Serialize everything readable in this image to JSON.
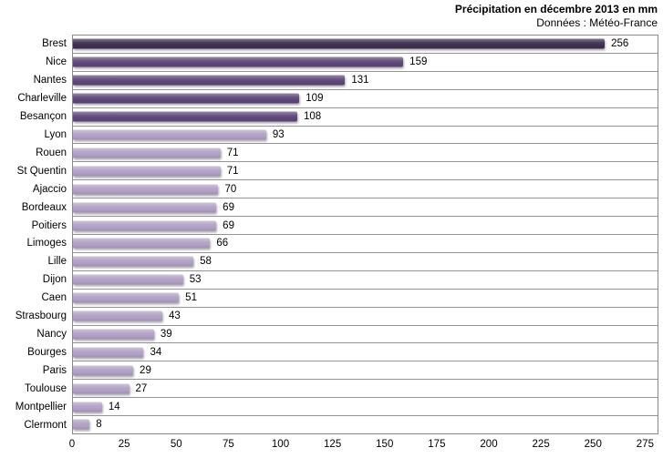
{
  "chart": {
    "title": "Précipitation en décembre 2013 en mm",
    "subtitle": "Données : Météo-France"
  },
  "chart_data": {
    "type": "bar",
    "orientation": "horizontal",
    "title": "Précipitation en décembre 2013 en mm",
    "subtitle": "Données : Météo-France",
    "xlabel": "",
    "ylabel": "",
    "categories": [
      "Brest",
      "Nice",
      "Nantes",
      "Charleville",
      "Besançon",
      "Lyon",
      "Rouen",
      "St Quentin",
      "Ajaccio",
      "Bordeaux",
      "Poitiers",
      "Limoges",
      "Lille",
      "Dijon",
      "Caen",
      "Strasbourg",
      "Nancy",
      "Bourges",
      "Paris",
      "Toulouse",
      "Montpellier",
      "Clermont"
    ],
    "values": [
      256,
      159,
      131,
      109,
      108,
      93,
      71,
      71,
      70,
      69,
      69,
      66,
      58,
      53,
      51,
      43,
      39,
      34,
      29,
      27,
      14,
      8
    ],
    "data_labels": [
      256,
      159,
      131,
      109,
      108,
      93,
      71,
      71,
      70,
      69,
      69,
      66,
      58,
      53,
      51,
      43,
      39,
      34,
      29,
      27,
      14,
      8
    ],
    "x_ticks": [
      0,
      25,
      50,
      75,
      100,
      125,
      150,
      175,
      200,
      225,
      250,
      275
    ],
    "xlim": [
      0,
      275
    ],
    "plot_max": 281.4,
    "grid": "category-separators-only",
    "legend": "none",
    "colors": {
      "dark": "#3F3151",
      "medium": "#5F497A",
      "light": "#B2A2C7",
      "plot_border": "#8A8A8A",
      "separator": "#949494",
      "text": "#000000"
    },
    "bar_colors": [
      "#3F3151",
      "#5F497A",
      "#5F497A",
      "#5F497A",
      "#5F497A",
      "#B2A2C7",
      "#B2A2C7",
      "#B2A2C7",
      "#B2A2C7",
      "#B2A2C7",
      "#B2A2C7",
      "#B2A2C7",
      "#B2A2C7",
      "#B2A2C7",
      "#B2A2C7",
      "#B2A2C7",
      "#B2A2C7",
      "#B2A2C7",
      "#B2A2C7",
      "#B2A2C7",
      "#B2A2C7",
      "#B2A2C7"
    ]
  }
}
